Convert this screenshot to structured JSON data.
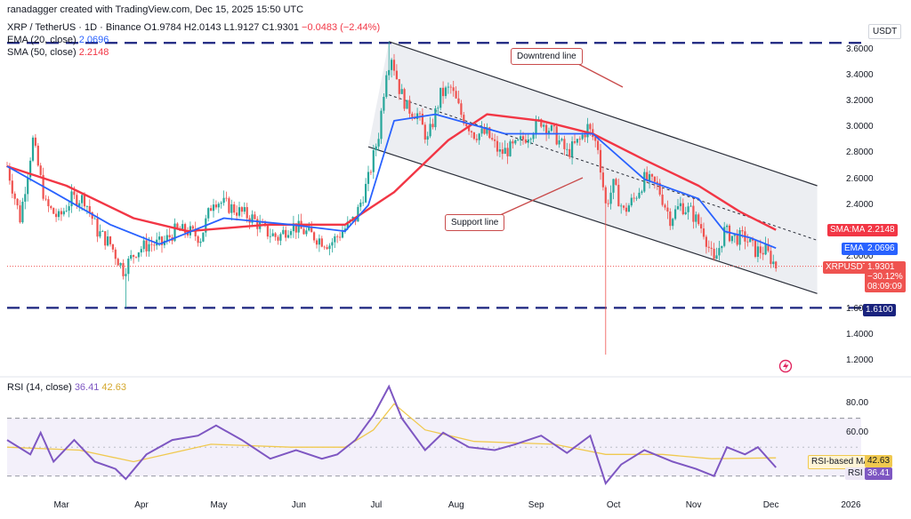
{
  "header": {
    "credit": "ranadagger created with TradingView.com, Dec 15, 2025 15:50 UTC",
    "symbol": "XRP / TetherUS · 1D · Binance",
    "ohlc": "O1.9784 H2.0143 L1.9127 C1.9301",
    "change": "−0.0483 (−2.44%)",
    "ema_label": "EMA (20, close)",
    "ema_value": "2.0696",
    "sma_label": "SMA (50, close)",
    "sma_value": "2.2148",
    "currency": "USDT"
  },
  "rsi_header": {
    "label": "RSI (14, close)",
    "rsi": "36.41",
    "ma": "42.63"
  },
  "price_tags": {
    "sma": {
      "name": "SMA:MA",
      "value": "2.2148"
    },
    "ema": {
      "name": "EMA",
      "value": "2.0696"
    },
    "last": {
      "name": "XRPUSDT",
      "value": "1.9301",
      "change": "−30.12%",
      "countdown": "08:09:09"
    },
    "support_level": "1.6100",
    "rsi_ma": {
      "name": "RSI-based MA",
      "value": "42.63"
    },
    "rsi": {
      "name": "RSI",
      "value": "36.41"
    }
  },
  "annotations": {
    "downtrend": "Downtrend line",
    "support": "Support line"
  },
  "colors": {
    "candle_up": "#26a69a",
    "candle_down": "#ef5350",
    "ema": "#2962ff",
    "sma": "#f23645",
    "rsi": "#7e57c2",
    "rsi_ma": "#f0c94f",
    "channel_fill": "#e9ebf0",
    "level": "#1a237e"
  },
  "chart_data": {
    "type": "candlestick",
    "x_ticks": [
      "Mar",
      "Apr",
      "May",
      "Jun",
      "Jul",
      "Aug",
      "Sep",
      "Oct",
      "Nov",
      "Dec",
      "2026"
    ],
    "y_ticks": [
      3.6,
      3.4,
      3.2,
      3.0,
      2.8,
      2.6,
      2.4,
      2.2,
      2.0,
      1.6,
      1.4,
      1.2
    ],
    "ylim": [
      1.12,
      3.72
    ],
    "close_path": [
      [
        "2025-02-20",
        2.7
      ],
      [
        "2025-02-25",
        2.3
      ],
      [
        "2025-03-02",
        2.9
      ],
      [
        "2025-03-07",
        2.4
      ],
      [
        "2025-03-12",
        2.3
      ],
      [
        "2025-03-17",
        2.45
      ],
      [
        "2025-03-22",
        2.45
      ],
      [
        "2025-03-27",
        2.2
      ],
      [
        "2025-04-01",
        2.1
      ],
      [
        "2025-04-06",
        1.9
      ],
      [
        "2025-04-11",
        2.05
      ],
      [
        "2025-04-16",
        2.1
      ],
      [
        "2025-04-21",
        2.1
      ],
      [
        "2025-04-26",
        2.2
      ],
      [
        "2025-05-01",
        2.2
      ],
      [
        "2025-05-06",
        2.15
      ],
      [
        "2025-05-11",
        2.45
      ],
      [
        "2025-05-16",
        2.4
      ],
      [
        "2025-05-21",
        2.35
      ],
      [
        "2025-05-26",
        2.3
      ],
      [
        "2025-05-31",
        2.2
      ],
      [
        "2025-06-05",
        2.15
      ],
      [
        "2025-06-10",
        2.25
      ],
      [
        "2025-06-15",
        2.2
      ],
      [
        "2025-06-20",
        2.15
      ],
      [
        "2025-06-25",
        2.1
      ],
      [
        "2025-06-30",
        2.2
      ],
      [
        "2025-07-05",
        2.3
      ],
      [
        "2025-07-10",
        2.6
      ],
      [
        "2025-07-14",
        2.95
      ],
      [
        "2025-07-17",
        3.45
      ],
      [
        "2025-07-19",
        3.55
      ],
      [
        "2025-07-22",
        3.3
      ],
      [
        "2025-07-25",
        3.15
      ],
      [
        "2025-07-29",
        3.1
      ],
      [
        "2025-08-02",
        2.9
      ],
      [
        "2025-08-07",
        3.25
      ],
      [
        "2025-08-11",
        3.3
      ],
      [
        "2025-08-15",
        3.1
      ],
      [
        "2025-08-20",
        2.95
      ],
      [
        "2025-08-25",
        2.95
      ],
      [
        "2025-08-30",
        2.8
      ],
      [
        "2025-09-05",
        2.85
      ],
      [
        "2025-09-10",
        2.95
      ],
      [
        "2025-09-15",
        3.05
      ],
      [
        "2025-09-20",
        2.95
      ],
      [
        "2025-09-25",
        2.8
      ],
      [
        "2025-09-30",
        2.9
      ],
      [
        "2025-10-03",
        3.0
      ],
      [
        "2025-10-07",
        2.85
      ],
      [
        "2025-10-10",
        2.4
      ],
      [
        "2025-10-13",
        2.55
      ],
      [
        "2025-10-17",
        2.35
      ],
      [
        "2025-10-21",
        2.45
      ],
      [
        "2025-10-25",
        2.6
      ],
      [
        "2025-10-30",
        2.55
      ],
      [
        "2025-11-04",
        2.3
      ],
      [
        "2025-11-08",
        2.4
      ],
      [
        "2025-11-12",
        2.35
      ],
      [
        "2025-11-17",
        2.2
      ],
      [
        "2025-11-21",
        1.95
      ],
      [
        "2025-11-25",
        2.2
      ],
      [
        "2025-11-29",
        2.15
      ],
      [
        "2025-12-03",
        2.15
      ],
      [
        "2025-12-07",
        2.05
      ],
      [
        "2025-12-11",
        2.05
      ],
      [
        "2025-12-15",
        1.93
      ]
    ],
    "wick_extremes": [
      [
        "2025-04-07",
        1.61
      ],
      [
        "2025-07-18",
        3.66
      ],
      [
        "2025-10-10",
        1.25
      ]
    ],
    "ema_path": [
      [
        "2025-02-20",
        2.7
      ],
      [
        "2025-03-10",
        2.5
      ],
      [
        "2025-04-01",
        2.25
      ],
      [
        "2025-04-20",
        2.1
      ],
      [
        "2025-05-15",
        2.3
      ],
      [
        "2025-06-10",
        2.25
      ],
      [
        "2025-07-01",
        2.2
      ],
      [
        "2025-07-10",
        2.4
      ],
      [
        "2025-07-20",
        3.05
      ],
      [
        "2025-08-05",
        3.1
      ],
      [
        "2025-09-01",
        2.95
      ],
      [
        "2025-09-20",
        2.95
      ],
      [
        "2025-10-05",
        2.95
      ],
      [
        "2025-10-25",
        2.6
      ],
      [
        "2025-11-15",
        2.45
      ],
      [
        "2025-11-25",
        2.2
      ],
      [
        "2025-12-05",
        2.15
      ],
      [
        "2025-12-15",
        2.07
      ]
    ],
    "sma_path": [
      [
        "2025-02-20",
        2.7
      ],
      [
        "2025-03-15",
        2.55
      ],
      [
        "2025-04-10",
        2.3
      ],
      [
        "2025-05-01",
        2.2
      ],
      [
        "2025-06-01",
        2.25
      ],
      [
        "2025-07-01",
        2.25
      ],
      [
        "2025-07-20",
        2.5
      ],
      [
        "2025-08-10",
        2.9
      ],
      [
        "2025-08-25",
        3.1
      ],
      [
        "2025-09-15",
        3.05
      ],
      [
        "2025-10-05",
        2.95
      ],
      [
        "2025-10-25",
        2.75
      ],
      [
        "2025-11-15",
        2.55
      ],
      [
        "2025-12-01",
        2.35
      ],
      [
        "2025-12-15",
        2.21
      ]
    ],
    "channel": {
      "upper": [
        [
          "2025-07-18",
          3.66
        ],
        [
          "2025-12-31",
          2.55
        ]
      ],
      "lower": [
        [
          "2025-07-10",
          2.85
        ],
        [
          "2025-12-31",
          1.72
        ]
      ],
      "midline": [
        [
          "2025-07-18",
          3.25
        ],
        [
          "2025-12-31",
          2.13
        ]
      ]
    },
    "levels": [
      3.65,
      1.61
    ],
    "rsi": {
      "ylim": [
        20,
        95
      ],
      "y_ticks": [
        80,
        60
      ],
      "band": [
        30,
        70
      ],
      "path": [
        [
          "2025-02-20",
          55
        ],
        [
          "2025-03-01",
          45
        ],
        [
          "2025-03-05",
          60
        ],
        [
          "2025-03-10",
          40
        ],
        [
          "2025-03-18",
          55
        ],
        [
          "2025-03-26",
          40
        ],
        [
          "2025-04-03",
          35
        ],
        [
          "2025-04-07",
          28
        ],
        [
          "2025-04-15",
          45
        ],
        [
          "2025-04-25",
          55
        ],
        [
          "2025-05-05",
          58
        ],
        [
          "2025-05-12",
          65
        ],
        [
          "2025-05-22",
          55
        ],
        [
          "2025-06-02",
          42
        ],
        [
          "2025-06-12",
          48
        ],
        [
          "2025-06-22",
          42
        ],
        [
          "2025-06-28",
          45
        ],
        [
          "2025-07-05",
          55
        ],
        [
          "2025-07-12",
          72
        ],
        [
          "2025-07-18",
          92
        ],
        [
          "2025-07-23",
          70
        ],
        [
          "2025-08-01",
          48
        ],
        [
          "2025-08-08",
          60
        ],
        [
          "2025-08-18",
          50
        ],
        [
          "2025-08-28",
          48
        ],
        [
          "2025-09-05",
          52
        ],
        [
          "2025-09-15",
          58
        ],
        [
          "2025-09-25",
          46
        ],
        [
          "2025-10-04",
          58
        ],
        [
          "2025-10-10",
          25
        ],
        [
          "2025-10-16",
          38
        ],
        [
          "2025-10-25",
          48
        ],
        [
          "2025-11-05",
          40
        ],
        [
          "2025-11-14",
          35
        ],
        [
          "2025-11-21",
          30
        ],
        [
          "2025-11-26",
          50
        ],
        [
          "2025-12-03",
          45
        ],
        [
          "2025-12-08",
          50
        ],
        [
          "2025-12-15",
          36
        ]
      ],
      "ma_path": [
        [
          "2025-02-20",
          50
        ],
        [
          "2025-03-20",
          48
        ],
        [
          "2025-04-10",
          40
        ],
        [
          "2025-05-10",
          52
        ],
        [
          "2025-06-10",
          50
        ],
        [
          "2025-07-01",
          50
        ],
        [
          "2025-07-12",
          62
        ],
        [
          "2025-07-20",
          80
        ],
        [
          "2025-08-01",
          62
        ],
        [
          "2025-08-20",
          54
        ],
        [
          "2025-09-20",
          52
        ],
        [
          "2025-10-10",
          45
        ],
        [
          "2025-11-01",
          45
        ],
        [
          "2025-11-20",
          42
        ],
        [
          "2025-12-15",
          42.6
        ]
      ]
    }
  }
}
